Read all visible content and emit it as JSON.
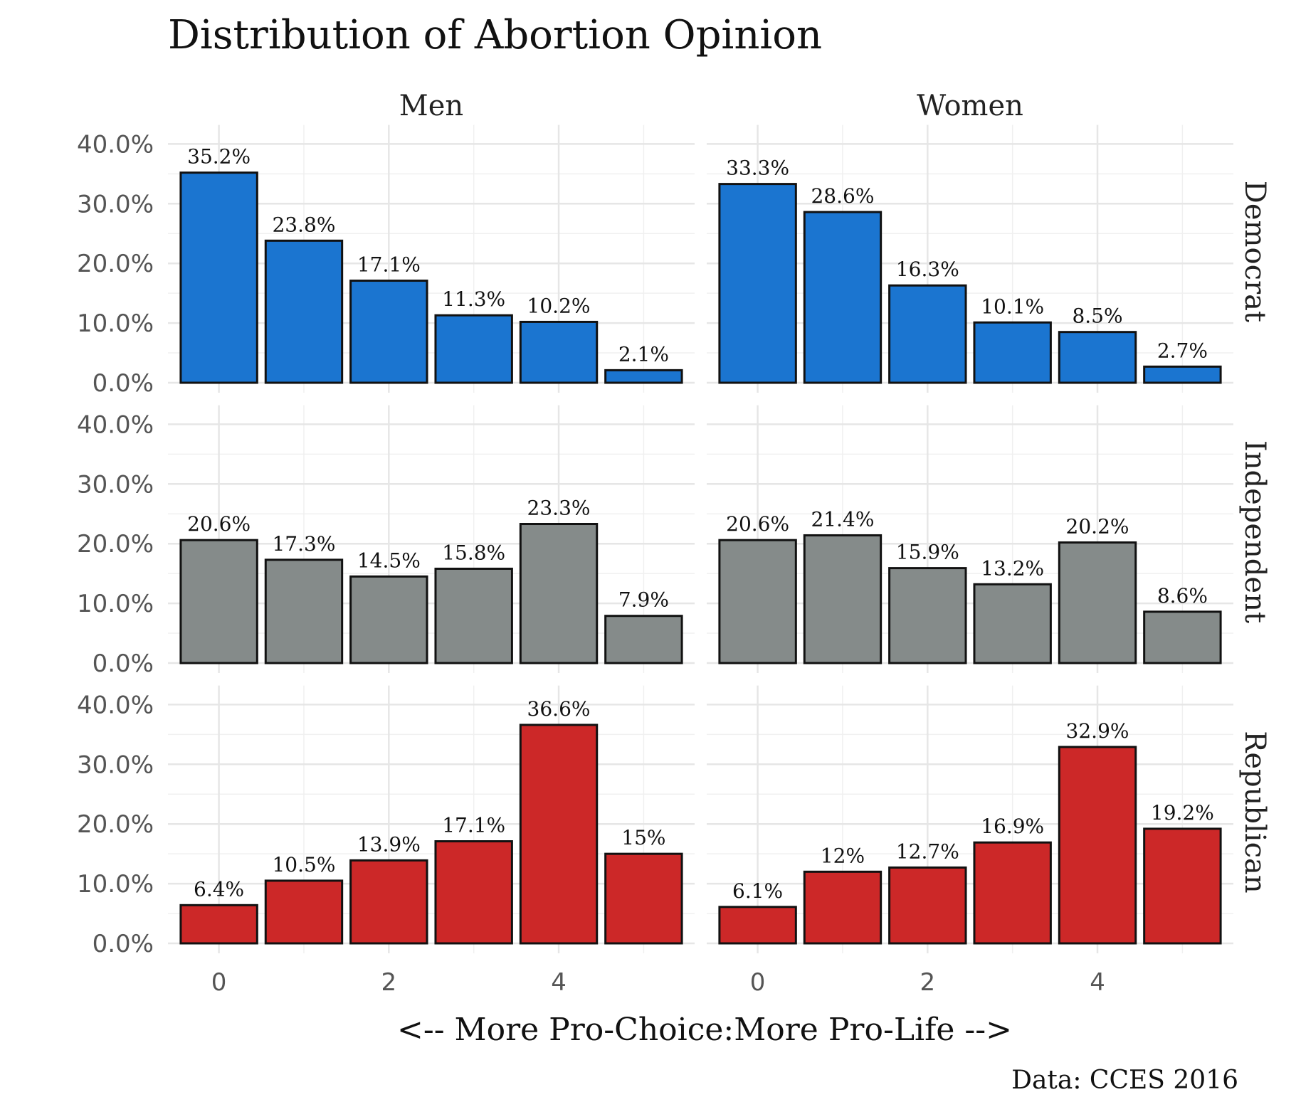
{
  "chart_data": {
    "type": "bar",
    "title": "Distribution of Abortion Opinion",
    "xlabel": "<-- More Pro-Choice:More Pro-Life -->",
    "caption": "Data: CCES 2016",
    "x": [
      0,
      1,
      2,
      3,
      4,
      5
    ],
    "x_tick_labels": [
      "0",
      "2",
      "4"
    ],
    "x_tick_values": [
      0,
      2,
      4
    ],
    "y_tick_labels": [
      "0.0%",
      "10.0%",
      "20.0%",
      "30.0%",
      "40.0%"
    ],
    "y_tick_values": [
      0,
      10,
      20,
      30,
      40
    ],
    "ylim": [
      0,
      42
    ],
    "grid": true,
    "columns": [
      "Men",
      "Women"
    ],
    "rows": [
      {
        "name": "Democrat",
        "color": "#1b75d0"
      },
      {
        "name": "Independent",
        "color": "#858b8a"
      },
      {
        "name": "Republican",
        "color": "#cc2828"
      }
    ],
    "panels": [
      {
        "row": "Democrat",
        "column": "Men",
        "values": [
          35.2,
          23.8,
          17.1,
          11.3,
          10.2,
          2.1
        ],
        "labels": [
          "35.2%",
          "23.8%",
          "17.1%",
          "11.3%",
          "10.2%",
          "2.1%"
        ]
      },
      {
        "row": "Democrat",
        "column": "Women",
        "values": [
          33.3,
          28.6,
          16.3,
          10.1,
          8.5,
          2.7
        ],
        "labels": [
          "33.3%",
          "28.6%",
          "16.3%",
          "10.1%",
          "8.5%",
          "2.7%"
        ]
      },
      {
        "row": "Independent",
        "column": "Men",
        "values": [
          20.6,
          17.3,
          14.5,
          15.8,
          23.3,
          7.9
        ],
        "labels": [
          "20.6%",
          "17.3%",
          "14.5%",
          "15.8%",
          "23.3%",
          "7.9%"
        ]
      },
      {
        "row": "Independent",
        "column": "Women",
        "values": [
          20.6,
          21.4,
          15.9,
          13.2,
          20.2,
          8.6
        ],
        "labels": [
          "20.6%",
          "21.4%",
          "15.9%",
          "13.2%",
          "20.2%",
          "8.6%"
        ]
      },
      {
        "row": "Republican",
        "column": "Men",
        "values": [
          6.4,
          10.5,
          13.9,
          17.1,
          36.6,
          15.0
        ],
        "labels": [
          "6.4%",
          "10.5%",
          "13.9%",
          "17.1%",
          "36.6%",
          "15%"
        ]
      },
      {
        "row": "Republican",
        "column": "Women",
        "values": [
          6.1,
          12.0,
          12.7,
          16.9,
          32.9,
          19.2
        ],
        "labels": [
          "6.1%",
          "12%",
          "12.7%",
          "16.9%",
          "32.9%",
          "19.2%"
        ]
      }
    ]
  }
}
